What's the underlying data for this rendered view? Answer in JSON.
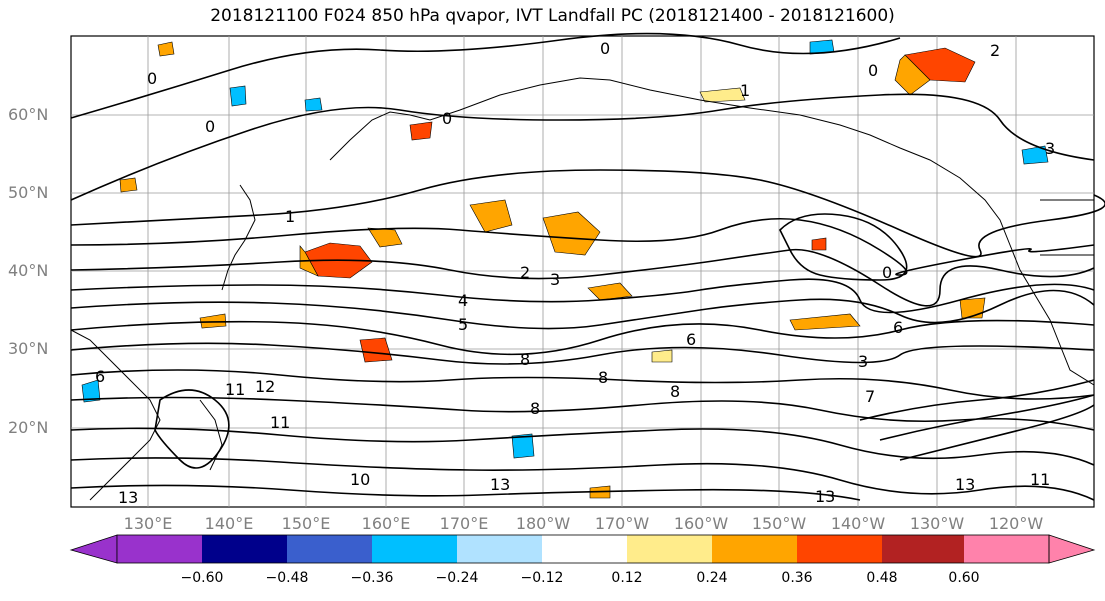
{
  "title": "2018121100 F024 850 hPa qvapor, IVT Landfall PC (2018121400 - 2018121600)",
  "lat_labels": [
    "60°N",
    "50°N",
    "40°N",
    "30°N",
    "20°N"
  ],
  "lon_labels": [
    "130°E",
    "140°E",
    "150°E",
    "160°E",
    "170°E",
    "180°W",
    "170°W",
    "160°W",
    "150°W",
    "140°W",
    "130°W",
    "120°W"
  ],
  "colorbar": {
    "ticks": [
      "−0.60",
      "−0.48",
      "−0.36",
      "−0.24",
      "−0.12",
      "0.12",
      "0.24",
      "0.36",
      "0.48",
      "0.60"
    ],
    "colors": [
      "#9932CC",
      "#00008B",
      "#3A5FCD",
      "#00BFFF",
      "#B0E2FF",
      "#FFFFFF",
      "#FFEC8B",
      "#FFA500",
      "#FF4500",
      "#B22222",
      "#FF82AB"
    ]
  },
  "contour_labels": [
    "0",
    "0",
    "0",
    "0",
    "0",
    "0",
    "1",
    "1",
    "2",
    "2",
    "3",
    "3",
    "3",
    "4",
    "5",
    "6",
    "6",
    "6",
    "7",
    "8",
    "8",
    "8",
    "8",
    "10",
    "11",
    "11",
    "12",
    "13",
    "13",
    "13",
    "13",
    "11"
  ],
  "colors": {
    "contour": "#000000",
    "coast": "#000000",
    "grid": "#9a9a9a",
    "label_gray": "#808080"
  }
}
